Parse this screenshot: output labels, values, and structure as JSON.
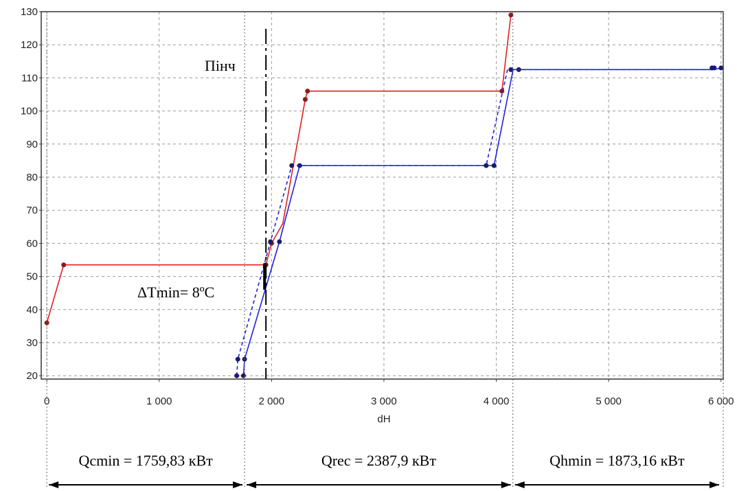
{
  "chart_data": {
    "type": "line",
    "xlabel": "dH",
    "ylabel": "",
    "xlim": [
      -50,
      6020
    ],
    "ylim": [
      19,
      130
    ],
    "x_ticks": [
      0,
      1000,
      2000,
      3000,
      4000,
      5000,
      6000
    ],
    "x_tick_labels": [
      "0",
      "1 000",
      "2 000",
      "3 000",
      "4 000",
      "5 000",
      "6 000"
    ],
    "y_ticks": [
      20,
      30,
      40,
      50,
      60,
      70,
      80,
      90,
      100,
      110,
      120,
      130
    ],
    "y_tick_labels": [
      "20",
      "30",
      "40",
      "50",
      "60",
      "70",
      "80",
      "90",
      "100",
      "110",
      "120",
      "130"
    ],
    "grid": true,
    "series": [
      {
        "color": "#e02020",
        "style": "solid",
        "points": [
          [
            0,
            36
          ],
          [
            150,
            53.5
          ],
          [
            1950,
            53.5
          ],
          [
            2000,
            60
          ],
          [
            2100,
            66
          ],
          [
            2300,
            103.5
          ],
          [
            2320,
            106
          ],
          [
            4050,
            106
          ],
          [
            4130,
            129
          ]
        ],
        "markers": [
          [
            0,
            36
          ],
          [
            150,
            53.5
          ],
          [
            1950,
            53.5
          ],
          [
            2000,
            60
          ],
          [
            2300,
            103.5
          ],
          [
            2320,
            106
          ],
          [
            4050,
            106
          ],
          [
            4130,
            129
          ]
        ]
      },
      {
        "color": "#2020e0",
        "style": "solid",
        "points": [
          [
            1750,
            20
          ],
          [
            1760,
            25
          ],
          [
            2070,
            60.5
          ],
          [
            2250,
            83.5
          ],
          [
            3980,
            83.5
          ],
          [
            4150,
            112.5
          ],
          [
            4200,
            112.5
          ],
          [
            5940,
            112.5
          ],
          [
            6000,
            113
          ]
        ],
        "markers": [
          [
            1750,
            20
          ],
          [
            1760,
            25
          ],
          [
            2070,
            60.5
          ],
          [
            2250,
            83.5
          ],
          [
            3980,
            83.5
          ],
          [
            4200,
            112.5
          ],
          [
            5940,
            113
          ],
          [
            6000,
            113
          ]
        ]
      },
      {
        "color": "#2020e0",
        "style": "dashed",
        "points": [
          [
            1690,
            20
          ],
          [
            1700,
            25
          ],
          [
            1990,
            60.5
          ],
          [
            2180,
            83.5
          ],
          [
            3910,
            83.5
          ],
          [
            4100,
            112.5
          ],
          [
            4150,
            112.5
          ],
          [
            5920,
            112.5
          ],
          [
            5960,
            113
          ]
        ],
        "markers": [
          [
            1690,
            20
          ],
          [
            1700,
            25
          ],
          [
            1990,
            60.5
          ],
          [
            2180,
            83.5
          ],
          [
            3910,
            83.5
          ],
          [
            4130,
            112.5
          ],
          [
            5920,
            113
          ]
        ]
      }
    ],
    "pinch_x": 1950,
    "pinch_label": "Пінч",
    "dtmin_label": "ΔTmin= 8ºC",
    "dtmin_range": [
      46,
      54
    ],
    "regions": [
      {
        "from": 0,
        "to": 1759.83,
        "label": "Qcmin = 1759,83 кВт"
      },
      {
        "from": 1759.83,
        "to": 4147.73,
        "label": "Qrec = 2387,9 кВт"
      },
      {
        "from": 4147.73,
        "to": 6020,
        "label": "Qhmin = 1873,16 кВт"
      }
    ]
  }
}
